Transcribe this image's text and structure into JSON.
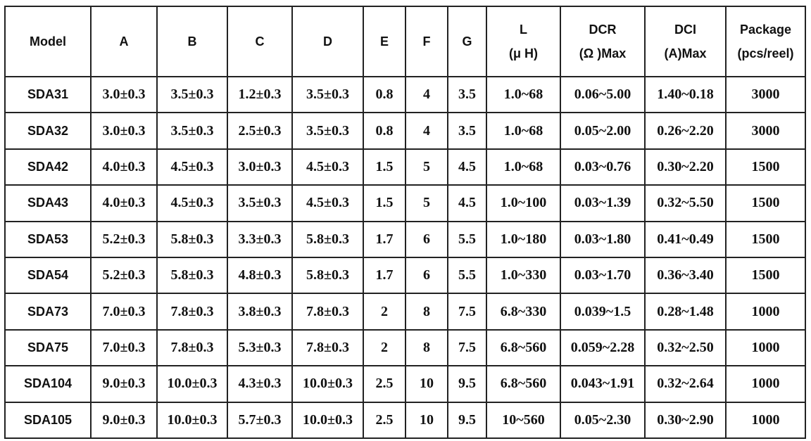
{
  "table": {
    "header": [
      [
        "Model"
      ],
      [
        "A"
      ],
      [
        "B"
      ],
      [
        "C"
      ],
      [
        "D"
      ],
      [
        "E"
      ],
      [
        "F"
      ],
      [
        "G"
      ],
      [
        "L",
        "(μ  H)"
      ],
      [
        "DCR",
        "(Ω )Max"
      ],
      [
        "DCI",
        "(A)Max"
      ],
      [
        "Package",
        "(pcs/reel)"
      ]
    ],
    "rows": [
      [
        "SDA31",
        "3.0±0.3",
        "3.5±0.3",
        "1.2±0.3",
        "3.5±0.3",
        "0.8",
        "4",
        "3.5",
        "1.0~68",
        "0.06~5.00",
        "1.40~0.18",
        "3000"
      ],
      [
        "SDA32",
        "3.0±0.3",
        "3.5±0.3",
        "2.5±0.3",
        "3.5±0.3",
        "0.8",
        "4",
        "3.5",
        "1.0~68",
        "0.05~2.00",
        "0.26~2.20",
        "3000"
      ],
      [
        "SDA42",
        "4.0±0.3",
        "4.5±0.3",
        "3.0±0.3",
        "4.5±0.3",
        "1.5",
        "5",
        "4.5",
        "1.0~68",
        "0.03~0.76",
        "0.30~2.20",
        "1500"
      ],
      [
        "SDA43",
        "4.0±0.3",
        "4.5±0.3",
        "3.5±0.3",
        "4.5±0.3",
        "1.5",
        "5",
        "4.5",
        "1.0~100",
        "0.03~1.39",
        "0.32~5.50",
        "1500"
      ],
      [
        "SDA53",
        "5.2±0.3",
        "5.8±0.3",
        "3.3±0.3",
        "5.8±0.3",
        "1.7",
        "6",
        "5.5",
        "1.0~180",
        "0.03~1.80",
        "0.41~0.49",
        "1500"
      ],
      [
        "SDA54",
        "5.2±0.3",
        "5.8±0.3",
        "4.8±0.3",
        "5.8±0.3",
        "1.7",
        "6",
        "5.5",
        "1.0~330",
        "0.03~1.70",
        "0.36~3.40",
        "1500"
      ],
      [
        "SDA73",
        "7.0±0.3",
        "7.8±0.3",
        "3.8±0.3",
        "7.8±0.3",
        "2",
        "8",
        "7.5",
        "6.8~330",
        "0.039~1.5",
        "0.28~1.48",
        "1000"
      ],
      [
        "SDA75",
        "7.0±0.3",
        "7.8±0.3",
        "5.3±0.3",
        "7.8±0.3",
        "2",
        "8",
        "7.5",
        "6.8~560",
        "0.059~2.28",
        "0.32~2.50",
        "1000"
      ],
      [
        "SDA104",
        "9.0±0.3",
        "10.0±0.3",
        "4.3±0.3",
        "10.0±0.3",
        "2.5",
        "10",
        "9.5",
        "6.8~560",
        "0.043~1.91",
        "0.32~2.64",
        "1000"
      ],
      [
        "SDA105",
        "9.0±0.3",
        "10.0±0.3",
        "5.7±0.3",
        "10.0±0.3",
        "2.5",
        "10",
        "9.5",
        "10~560",
        "0.05~2.30",
        "0.30~2.90",
        "1000"
      ]
    ]
  }
}
